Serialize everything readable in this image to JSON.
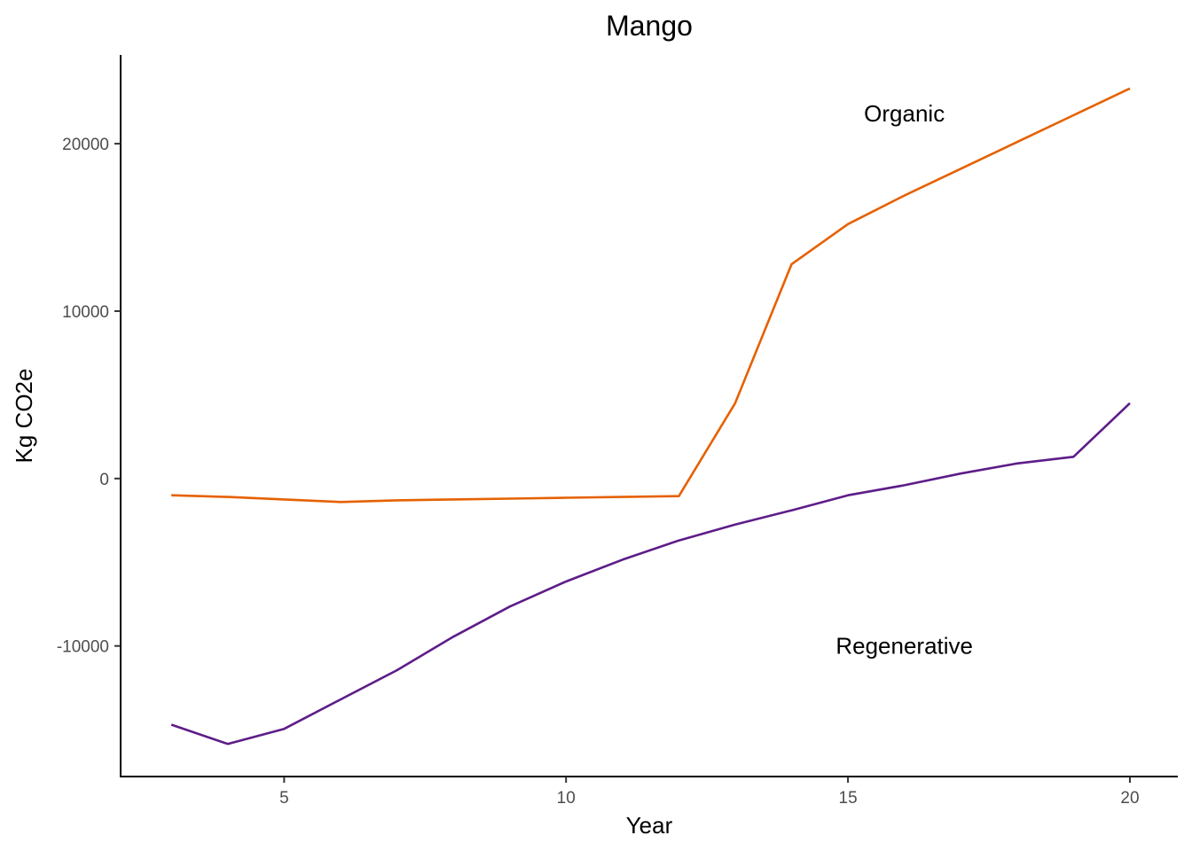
{
  "chart_data": {
    "type": "line",
    "title": "Mango",
    "xlabel": "Year",
    "ylabel": "Kg CO2e",
    "xlim": [
      2.1,
      20.85
    ],
    "ylim": [
      -17800,
      25300
    ],
    "x_ticks": [
      5,
      10,
      15,
      20
    ],
    "y_ticks": [
      -10000,
      0,
      10000,
      20000
    ],
    "x_tick_labels": [
      "5",
      "10",
      "15",
      "20"
    ],
    "y_tick_labels": [
      "-10000",
      "0",
      "10000",
      "20000"
    ],
    "grid": false,
    "legend": "none",
    "series": [
      {
        "name": "Organic",
        "color": "#e66101",
        "x": [
          3,
          4,
          5,
          6,
          7,
          8,
          9,
          10,
          11,
          12,
          13,
          14,
          15,
          16,
          17,
          18,
          19,
          20
        ],
        "y": [
          -1000,
          -1100,
          -1250,
          -1400,
          -1300,
          -1250,
          -1200,
          -1150,
          -1100,
          -1050,
          4500,
          12800,
          15200,
          16900,
          18500,
          20100,
          21700,
          23300
        ]
      },
      {
        "name": "Regenerative",
        "color": "#5e1d88",
        "x": [
          3,
          4,
          5,
          6,
          7,
          8,
          9,
          10,
          11,
          12,
          13,
          14,
          15,
          16,
          17,
          18,
          19,
          20
        ],
        "y": [
          -14700,
          -15850,
          -14950,
          -13200,
          -11450,
          -9450,
          -7650,
          -6150,
          -4850,
          -3700,
          -2750,
          -1900,
          -1000,
          -400,
          300,
          900,
          1300,
          4500
        ]
      }
    ],
    "annotations": [
      {
        "text": "Organic",
        "x": 16,
        "y": 21800
      },
      {
        "text": "Regenerative",
        "x": 16,
        "y": -10000
      }
    ]
  }
}
